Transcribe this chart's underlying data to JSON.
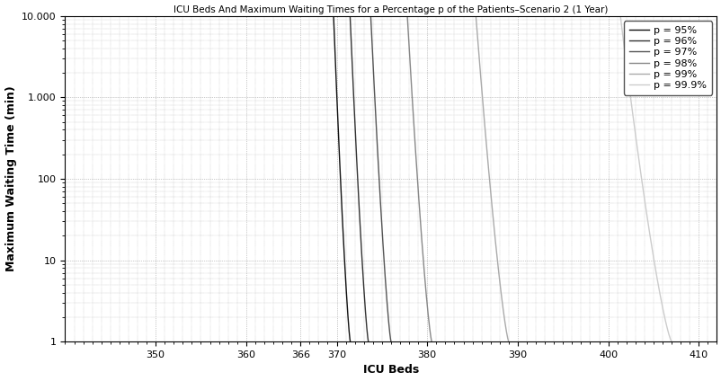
{
  "title": "ICU Beds And Maximum Waiting Times for a Percentage p of the Patients–Scenario 2 (1 Year)",
  "xlabel": "ICU Beds",
  "ylabel": "Maximum Waiting Time (min)",
  "xlim": [
    340,
    412
  ],
  "ylim": [
    1,
    10000
  ],
  "xticks": [
    350,
    360,
    366,
    370,
    380,
    390,
    400,
    410
  ],
  "yticks": [
    1,
    10,
    100,
    1000,
    10000
  ],
  "ytick_labels": [
    "1",
    "10",
    "100",
    "1.000",
    "10.000"
  ],
  "grid_color": "#999999",
  "bg_color": "#ffffff",
  "series": [
    {
      "label": "p = 95%",
      "color": "#111111",
      "lw": 1.0,
      "x0": 371.5,
      "k": 1.8
    },
    {
      "label": "p = 96%",
      "color": "#333333",
      "lw": 1.0,
      "x0": 373.5,
      "k": 1.6
    },
    {
      "label": "p = 97%",
      "color": "#555555",
      "lw": 1.0,
      "x0": 376.0,
      "k": 1.4
    },
    {
      "label": "p = 98%",
      "color": "#888888",
      "lw": 1.0,
      "x0": 380.5,
      "k": 1.1
    },
    {
      "label": "p = 99%",
      "color": "#aaaaaa",
      "lw": 1.0,
      "x0": 389.0,
      "k": 0.75
    },
    {
      "label": "p = 99.9%",
      "color": "#cccccc",
      "lw": 1.0,
      "x0": 407.0,
      "k": 0.42
    }
  ]
}
